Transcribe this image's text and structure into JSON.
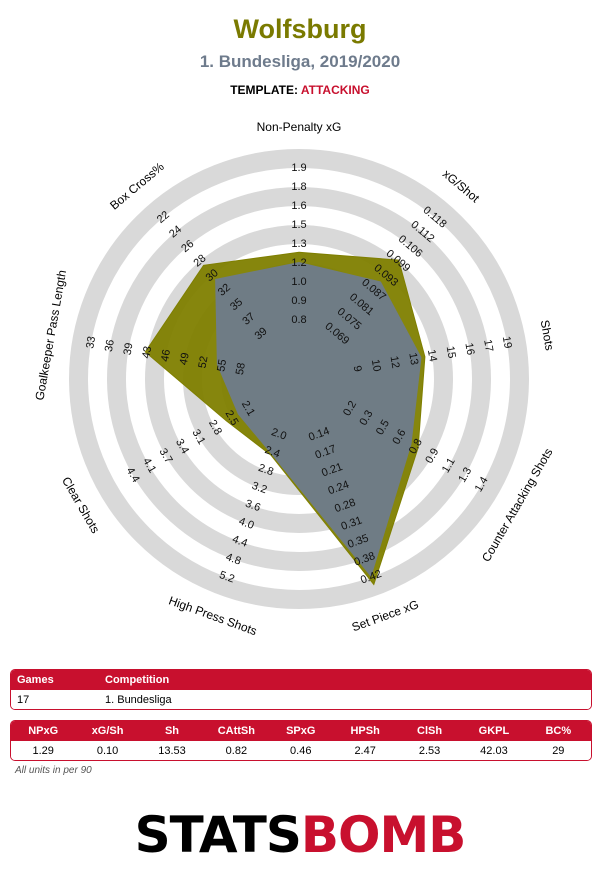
{
  "header": {
    "title": "Wolfsburg",
    "subtitle": "1. Bundesliga, 2019/2020",
    "template_label": "TEMPLATE:",
    "template_value": "ATTACKING"
  },
  "colors": {
    "team": "#7f7f00",
    "league": "#6e7b8c",
    "ring": "#d9d9d9",
    "accent": "#c8102e"
  },
  "chart_data": {
    "type": "radar",
    "metrics": [
      {
        "label": "Non-Penalty xG",
        "ticks": [
          "0.8",
          "0.9",
          "1.0",
          "1.2",
          "1.3",
          "1.5",
          "1.6",
          "1.8",
          "1.9"
        ],
        "team": 1.29,
        "league": 1.22
      },
      {
        "label": "xG/Shot",
        "ticks": [
          "0.069",
          "0.075",
          "0.081",
          "0.087",
          "0.093",
          "0.099",
          "0.106",
          "0.112",
          "0.118"
        ],
        "team": 0.1,
        "league": 0.091
      },
      {
        "label": "Shots",
        "ticks": [
          "9",
          "10",
          "12",
          "13",
          "14",
          "15",
          "16",
          "17",
          "19"
        ],
        "team": 13.53,
        "league": 13.3
      },
      {
        "label": "Counter Attacking Shots",
        "ticks": [
          "0.2",
          "0.3",
          "0.5",
          "0.6",
          "0.8",
          "0.9",
          "1.1",
          "1.3",
          "1.4"
        ],
        "team": 0.82,
        "league": 0.76
      },
      {
        "label": "Set Piece xG",
        "ticks": [
          "0.14",
          "0.17",
          "0.21",
          "0.24",
          "0.28",
          "0.31",
          "0.35",
          "0.38",
          "0.42"
        ],
        "team": 0.46,
        "league": 0.42
      },
      {
        "label": "High Press Shots",
        "ticks": [
          "2.0",
          "2.4",
          "2.8",
          "3.2",
          "3.6",
          "4.0",
          "4.4",
          "4.8",
          "5.2"
        ],
        "team": 2.47,
        "league": 2.45
      },
      {
        "label": "Clear Shots",
        "ticks": [
          "2.1",
          "2.5",
          "2.8",
          "3.1",
          "3.4",
          "3.7",
          "4.1",
          "4.4"
        ],
        "team": 2.53,
        "league": 2.3
      },
      {
        "label": "Goalkeeper Pass Length",
        "ticks": [
          "58",
          "55",
          "52",
          "49",
          "46",
          "43",
          "39",
          "36",
          "33"
        ],
        "team": 42.03,
        "league": 54.0
      },
      {
        "label": "Box Cross%",
        "ticks": [
          "39",
          "37",
          "35",
          "32",
          "30",
          "28",
          "26",
          "24",
          "22"
        ],
        "team": 29,
        "league": 31
      }
    ]
  },
  "table_games": {
    "headers": [
      "Games",
      "Competition"
    ],
    "values": [
      "17",
      "1. Bundesliga"
    ]
  },
  "table_stats": {
    "headers": [
      "NPxG",
      "xG/Sh",
      "Sh",
      "CAttSh",
      "SPxG",
      "HPSh",
      "ClSh",
      "GKPL",
      "BC%"
    ],
    "values": [
      "1.29",
      "0.10",
      "13.53",
      "0.82",
      "0.46",
      "2.47",
      "2.53",
      "42.03",
      "29"
    ]
  },
  "note": "All units in per 90",
  "logo": {
    "part1": "STATS",
    "part2": "BOMB"
  }
}
